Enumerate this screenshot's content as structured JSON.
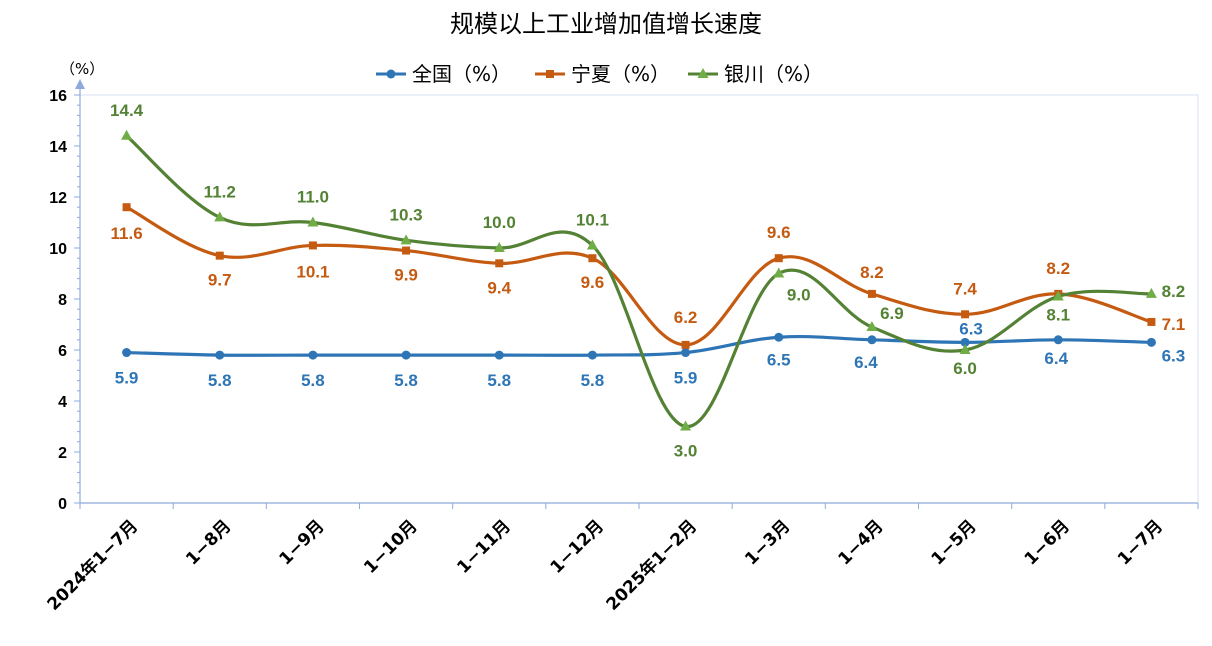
{
  "chart_data": {
    "type": "line",
    "title": "规模以上工业增加值增长速度",
    "ylabel": "（%）",
    "xlabel": "",
    "ylim": [
      0,
      16
    ],
    "yticks": [
      0,
      2,
      4,
      6,
      8,
      10,
      12,
      14,
      16
    ],
    "categories": [
      "2024年1−7月",
      "1−8月",
      "1−9月",
      "1−10月",
      "1−11月",
      "1−12月",
      "2025年1−2月",
      "1−3月",
      "1−4月",
      "1−5月",
      "1−6月",
      "1−7月"
    ],
    "series": [
      {
        "name": "全国（%）",
        "color": "#2E75B6",
        "marker": "circle",
        "values": [
          5.9,
          5.8,
          5.8,
          5.8,
          5.8,
          5.8,
          5.9,
          6.5,
          6.4,
          6.3,
          6.4,
          6.3
        ],
        "labels": [
          "5.9",
          "5.8",
          "5.8",
          "5.8",
          "5.8",
          "5.8",
          "5.9",
          "6.5",
          "6.4",
          "6.3",
          "6.4",
          "6.3"
        ]
      },
      {
        "name": "宁夏（%）",
        "color": "#C55A11",
        "marker": "square",
        "values": [
          11.6,
          9.7,
          10.1,
          9.9,
          9.4,
          9.6,
          6.2,
          9.6,
          8.2,
          7.4,
          8.2,
          7.1
        ],
        "labels": [
          "11.6",
          "9.7",
          "10.1",
          "9.9",
          "9.4",
          "9.6",
          "6.2",
          "9.6",
          "8.2",
          "7.4",
          "8.2",
          "7.1"
        ]
      },
      {
        "name": "银川（%）",
        "color": "#548235",
        "marker_color": "#70AD47",
        "marker": "triangle",
        "values": [
          14.4,
          11.2,
          11.0,
          10.3,
          10.0,
          10.1,
          3.0,
          9.0,
          6.9,
          6.0,
          8.1,
          8.2
        ],
        "labels": [
          "14.4",
          "11.2",
          "11.0",
          "10.3",
          "10.0",
          "10.1",
          "3.0",
          "9.0",
          "6.9",
          "6.0",
          "8.1",
          "8.2"
        ]
      }
    ],
    "legend_position": "top-center",
    "grid": false
  }
}
